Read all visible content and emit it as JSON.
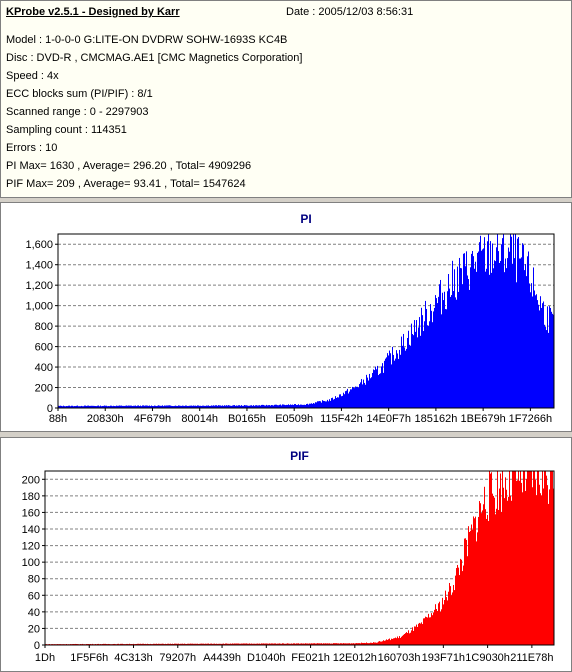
{
  "info": {
    "title": "KProbe v2.5.1 - Designed by Karr",
    "date": "Date : 2005/12/03 8:56:31",
    "lines": [
      "Model : 1-0-0-0 G:LITE-ON DVDRW SOHW-1693S KC4B",
      "Disc : DVD-R , CMCMAG.AE1 [CMC Magnetics Corporation]",
      "Speed : 4x",
      "ECC blocks sum (PI/PIF) : 8/1",
      "Scanned range : 0 - 2297903",
      "Sampling count : 114351",
      "Errors : 10",
      "PI Max= 1630 , Average= 296.20 , Total= 4909296",
      "PIF Max= 209 , Average= 93.41 , Total= 1547624"
    ]
  },
  "chart_data": [
    {
      "type": "area",
      "title": "PI",
      "color": "#0000ff",
      "ylim": [
        0,
        1700
      ],
      "yticks": [
        0,
        200,
        400,
        600,
        800,
        "1,000",
        "1,200",
        "1,400",
        "1,600"
      ],
      "ytick_values": [
        0,
        200,
        400,
        600,
        800,
        1000,
        1200,
        1400,
        1600
      ],
      "xticks": [
        "88h",
        "20830h",
        "4F679h",
        "80014h",
        "B0165h",
        "E0509h",
        "115F42h",
        "14E0F7h",
        "185162h",
        "1BE679h",
        "1F7266h"
      ],
      "x_progress": [
        0,
        0.4,
        0.5,
        0.55,
        0.6,
        0.65,
        0.7,
        0.75,
        0.8,
        0.85,
        0.88,
        0.92,
        0.95,
        0.98,
        1.0
      ],
      "y": [
        20,
        25,
        35,
        80,
        200,
        380,
        650,
        950,
        1250,
        1450,
        1520,
        1500,
        1300,
        950,
        820
      ],
      "grid": true
    },
    {
      "type": "area",
      "title": "PIF",
      "color": "#ff0000",
      "ylim": [
        0,
        210
      ],
      "yticks": [
        0,
        20,
        40,
        60,
        80,
        100,
        120,
        140,
        160,
        180,
        200
      ],
      "ytick_values": [
        0,
        20,
        40,
        60,
        80,
        100,
        120,
        140,
        160,
        180,
        200
      ],
      "xticks": [
        "1Dh",
        "1F5F6h",
        "4C313h",
        "79207h",
        "A4439h",
        "D1040h",
        "FE021h",
        "12E012h",
        "160703h",
        "193F71h",
        "1C9030h",
        "211E78h"
      ],
      "x_progress": [
        0,
        0.6,
        0.65,
        0.7,
        0.74,
        0.78,
        0.8,
        0.83,
        0.86,
        0.9,
        0.93,
        0.96,
        1.0
      ],
      "y": [
        1,
        2,
        3,
        10,
        25,
        50,
        70,
        120,
        170,
        195,
        200,
        205,
        205
      ],
      "grid": true
    }
  ]
}
